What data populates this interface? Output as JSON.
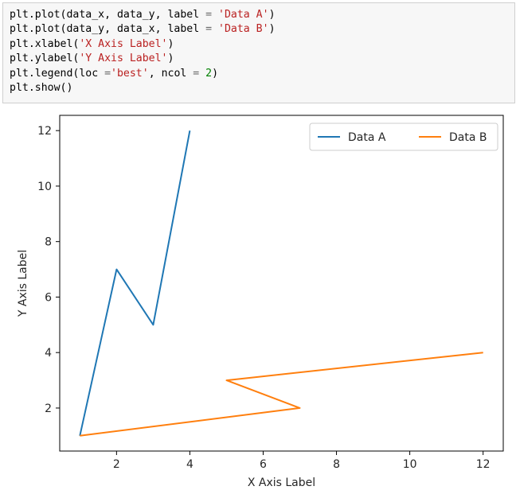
{
  "code": {
    "lines": [
      [
        {
          "t": "plt.plot(data_x, data_y, label "
        },
        {
          "t": "=",
          "c": "op"
        },
        {
          "t": " "
        },
        {
          "t": "'Data A'",
          "c": "str"
        },
        {
          "t": ")"
        }
      ],
      [
        {
          "t": "plt.plot(data_y, data_x, label "
        },
        {
          "t": "=",
          "c": "op"
        },
        {
          "t": " "
        },
        {
          "t": "'Data B'",
          "c": "str"
        },
        {
          "t": ")"
        }
      ],
      [
        {
          "t": "plt.xlabel("
        },
        {
          "t": "'X Axis Label'",
          "c": "str"
        },
        {
          "t": ")"
        }
      ],
      [
        {
          "t": "plt.ylabel("
        },
        {
          "t": "'Y Axis Label'",
          "c": "str"
        },
        {
          "t": ")"
        }
      ],
      [
        {
          "t": "plt.legend(loc "
        },
        {
          "t": "=",
          "c": "op"
        },
        {
          "t": "'best'",
          "c": "str"
        },
        {
          "t": ", ncol "
        },
        {
          "t": "=",
          "c": "op"
        },
        {
          "t": " "
        },
        {
          "t": "2",
          "c": "num"
        },
        {
          "t": ")"
        }
      ],
      [
        {
          "t": "plt.show()"
        }
      ]
    ]
  },
  "chart_data": {
    "type": "line",
    "xlabel": "X Axis Label",
    "ylabel": "Y Axis Label",
    "xlim": [
      0.45,
      12.55
    ],
    "ylim": [
      0.45,
      12.55
    ],
    "xticks": [
      2,
      4,
      6,
      8,
      10,
      12
    ],
    "yticks": [
      2,
      4,
      6,
      8,
      10,
      12
    ],
    "grid": false,
    "legend": {
      "position": "top-right",
      "ncol": 2
    },
    "series": [
      {
        "name": "Data A",
        "color": "#1f77b4",
        "x": [
          1,
          2,
          3,
          4
        ],
        "y": [
          1,
          7,
          5,
          12
        ]
      },
      {
        "name": "Data B",
        "color": "#ff7f0e",
        "x": [
          1,
          7,
          5,
          12
        ],
        "y": [
          1,
          2,
          3,
          4
        ]
      }
    ]
  }
}
